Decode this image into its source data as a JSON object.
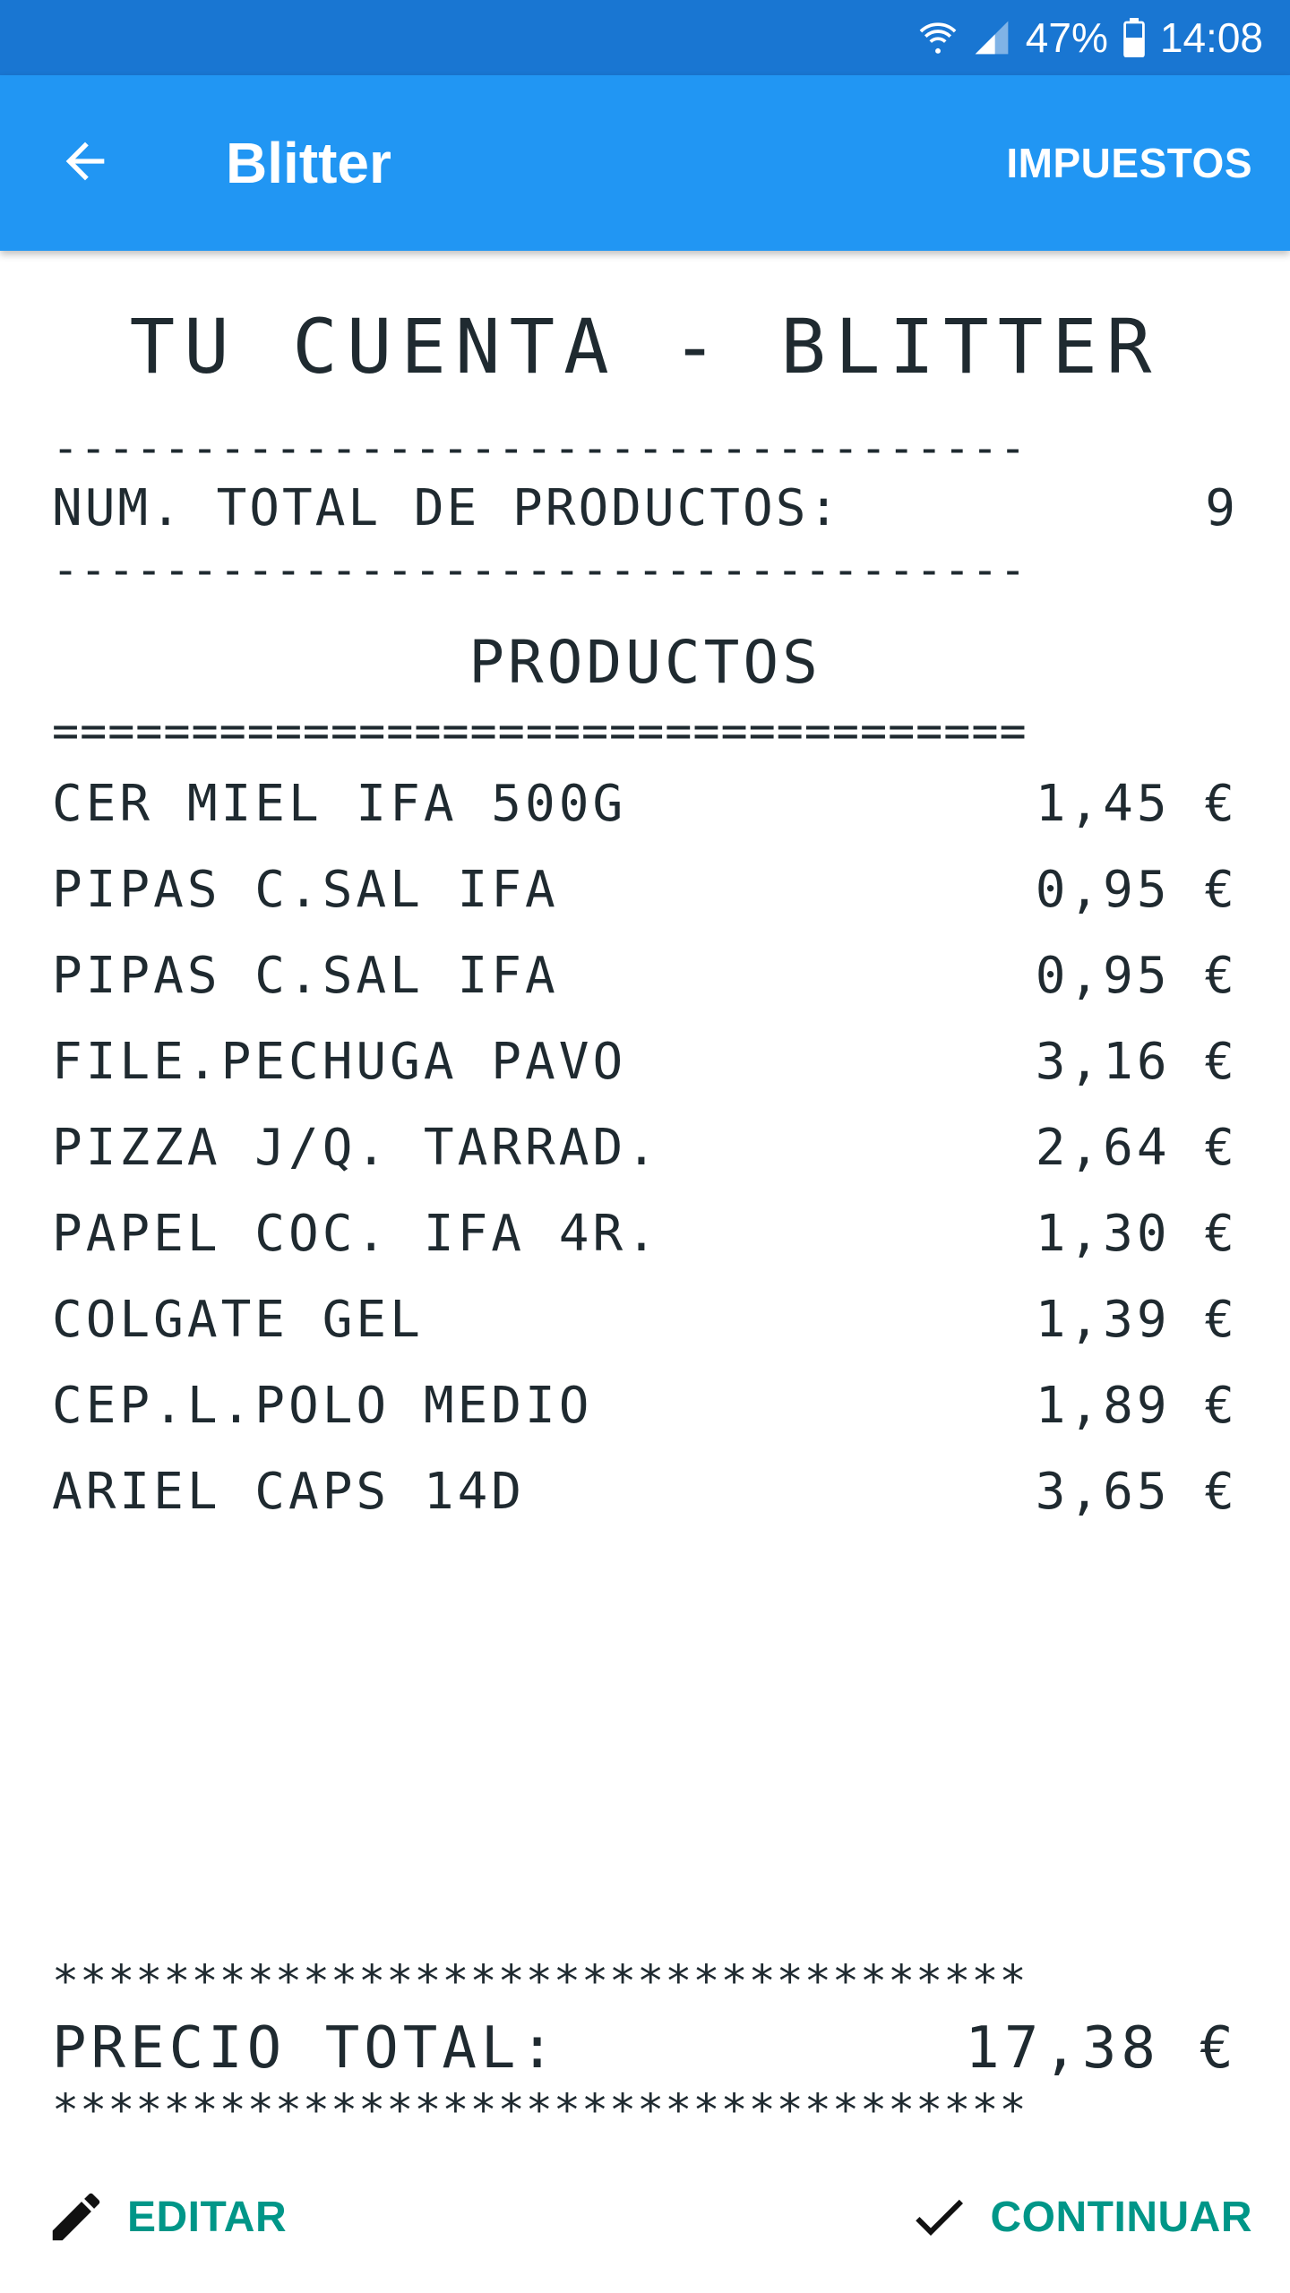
{
  "status_bar": {
    "icons": [
      "wifi-icon",
      "signal-icon",
      "battery-icon"
    ],
    "battery": "47%",
    "time": "14:08"
  },
  "app_bar": {
    "title": "Blitter",
    "action": "IMPUESTOS",
    "back_icon": "arrow-back-icon",
    "color": "#2196F3"
  },
  "receipt": {
    "title": "TU CUENTA - BLITTER",
    "dash_line": "-----------------------------------",
    "eq_line": "===================================",
    "star_line": "***********************************",
    "count_label": "NUM. TOTAL DE PRODUCTOS:",
    "count_value": "9",
    "section_title": "PRODUCTOS",
    "items": [
      {
        "name": "CER MIEL IFA 500G",
        "price": "1,45 €"
      },
      {
        "name": "PIPAS C.SAL IFA",
        "price": "0,95 €"
      },
      {
        "name": "PIPAS C.SAL IFA",
        "price": "0,95 €"
      },
      {
        "name": "FILE.PECHUGA PAVO",
        "price": "3,16 €"
      },
      {
        "name": "PIZZA J/Q. TARRAD.",
        "price": "2,64 €"
      },
      {
        "name": "PAPEL COC. IFA 4R.",
        "price": "1,30 €"
      },
      {
        "name": "COLGATE GEL",
        "price": "1,39 €"
      },
      {
        "name": "CEP.L.POLO MEDIO",
        "price": "1,89 €"
      },
      {
        "name": "ARIEL CAPS 14D",
        "price": "3,65 €"
      }
    ],
    "total_label": "PRECIO TOTAL:",
    "total_value": "17,38 €"
  },
  "footer": {
    "edit_label": "EDITAR",
    "edit_icon": "pencil-icon",
    "continue_label": "CONTINUAR",
    "continue_icon": "check-icon",
    "accent": "#009688"
  }
}
